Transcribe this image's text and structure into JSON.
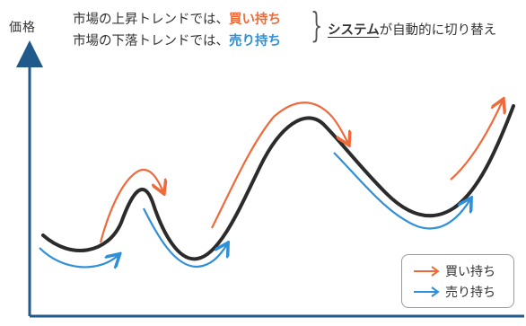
{
  "y_axis_label": "価格",
  "conditions": [
    {
      "prefix": "市場の上昇トレンドでは、",
      "emphasis": "買い持ち"
    },
    {
      "prefix": "市場の下落トレンドでは、",
      "emphasis": "売り持ち"
    }
  ],
  "system_note": {
    "system": "システム",
    "rest": "が自動的に切り替え"
  },
  "legend": {
    "buy": "買い持ち",
    "sell": "売り持ち"
  },
  "colors": {
    "price": "#2b2b2b",
    "buy": "#ef6a3b",
    "sell": "#2f8fd8",
    "axis": "#1f5a8a"
  }
}
